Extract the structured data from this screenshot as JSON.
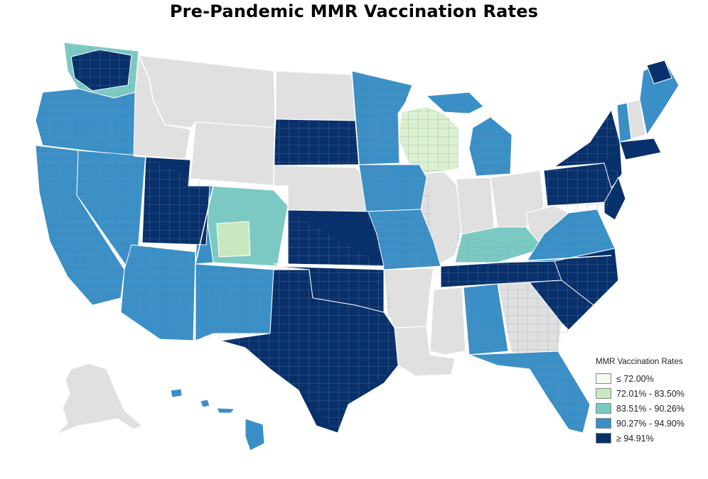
{
  "title": "Pre-Pandemic MMR Vaccination Rates",
  "legend": {
    "title": "MMR Vaccination Rates",
    "items": [
      {
        "label": "≤ 72.00%",
        "color": "#f4fbee"
      },
      {
        "label": "72.01% - 83.50%",
        "color": "#c8e9c0"
      },
      {
        "label": "83.51% - 90.26%",
        "color": "#7cc9c3"
      },
      {
        "label": "90.27% - 94.90%",
        "color": "#3a8fc6"
      },
      {
        "label": "≥ 94.91%",
        "color": "#08306b"
      }
    ]
  },
  "colors": {
    "no_data": "#e0e0e0",
    "borders": "#ffffff",
    "county_lines": "#8a9ab0"
  }
}
